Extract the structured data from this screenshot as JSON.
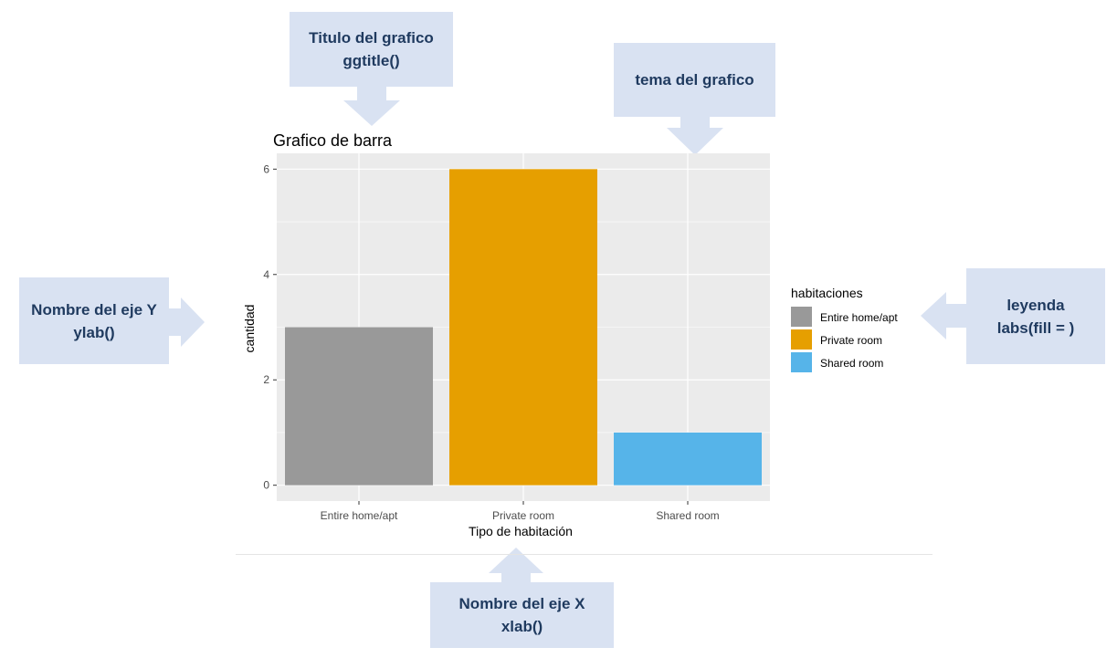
{
  "callouts": {
    "title": {
      "line1": "Titulo del grafico",
      "line2": "ggtitle()"
    },
    "theme": {
      "line1": "tema del grafico"
    },
    "ylab": {
      "line1": "Nombre del eje Y",
      "line2": "ylab()"
    },
    "legend": {
      "line1": "leyenda",
      "line2": "labs(fill = )"
    },
    "xlab": {
      "line1": "Nombre del eje X",
      "line2": "xlab()"
    }
  },
  "colors": {
    "callout_bg": "#d9e2f2",
    "callout_text": "#1f3a5f",
    "panel_bg": "#ebebeb",
    "grid": "#ffffff"
  },
  "chart_data": {
    "type": "bar",
    "title": "Grafico de barra",
    "xlabel": "Tipo de habitación",
    "ylabel": "cantidad",
    "categories": [
      "Entire home/apt",
      "Private room",
      "Shared room"
    ],
    "values": [
      3,
      6,
      1
    ],
    "bar_colors": [
      "#999999",
      "#e69f00",
      "#56b4e9"
    ],
    "ylim": [
      -0.3,
      6.3
    ],
    "yticks": [
      0,
      2,
      4,
      6
    ],
    "yticklabels": [
      "0",
      "2",
      "4",
      "6"
    ],
    "grid": true,
    "legend": {
      "title": "habitaciones",
      "position": "right",
      "items": [
        "Entire home/apt",
        "Private room",
        "Shared room"
      ]
    }
  }
}
